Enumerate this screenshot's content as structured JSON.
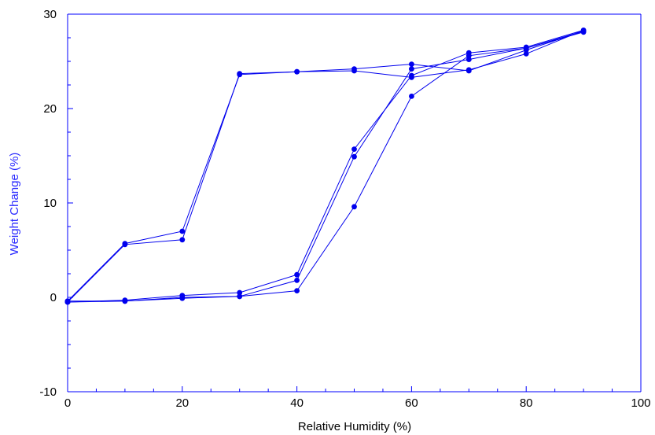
{
  "chart_data": {
    "type": "scatter",
    "title": "",
    "xlabel": "Relative Humidity (%)",
    "ylabel": "Weight Change (%)",
    "xlim": [
      0,
      100
    ],
    "ylim": [
      -10,
      30
    ],
    "x_ticks": [
      0,
      20,
      40,
      60,
      80,
      100
    ],
    "y_ticks": [
      -10,
      0,
      10,
      20,
      30
    ],
    "x_tick_labels": [
      "0",
      "20",
      "40",
      "60",
      "80",
      "100"
    ],
    "y_tick_labels": [
      "-10",
      "0",
      "10",
      "20",
      "30"
    ],
    "grid": false,
    "legend": "none",
    "line_mode": "lines+markers",
    "series": [
      {
        "points": [
          [
            0,
            -0.5
          ],
          [
            10,
            -0.3
          ],
          [
            20,
            0.2
          ],
          [
            30,
            0.5
          ],
          [
            40,
            2.4
          ],
          [
            50,
            15.7
          ],
          [
            60,
            23.5
          ],
          [
            70,
            25.9
          ],
          [
            80,
            26.5
          ],
          [
            90,
            28.3
          ],
          [
            80,
            25.8
          ],
          [
            70,
            24.1
          ],
          [
            60,
            23.3
          ],
          [
            50,
            24.0
          ],
          [
            40,
            23.9
          ],
          [
            30,
            23.6
          ],
          [
            20,
            7.0
          ],
          [
            10,
            5.7
          ],
          [
            0,
            -0.4
          ]
        ]
      },
      {
        "points": [
          [
            0,
            -0.4
          ],
          [
            10,
            -0.4
          ],
          [
            20,
            -0.1
          ],
          [
            30,
            0.1
          ],
          [
            40,
            1.8
          ],
          [
            50,
            14.9
          ],
          [
            60,
            24.2
          ],
          [
            70,
            25.2
          ],
          [
            80,
            26.4
          ],
          [
            90,
            28.2
          ],
          [
            80,
            26.2
          ],
          [
            70,
            24.0
          ],
          [
            60,
            24.7
          ],
          [
            50,
            24.2
          ],
          [
            40,
            23.9
          ],
          [
            30,
            23.7
          ],
          [
            20,
            6.1
          ],
          [
            10,
            5.6
          ],
          [
            0,
            -0.5
          ]
        ]
      },
      {
        "points": [
          [
            0,
            -0.5
          ],
          [
            10,
            -0.4
          ],
          [
            20,
            0.0
          ],
          [
            30,
            0.1
          ],
          [
            40,
            0.7
          ],
          [
            50,
            9.6
          ],
          [
            60,
            21.3
          ],
          [
            70,
            25.6
          ],
          [
            80,
            26.4
          ],
          [
            90,
            28.1
          ]
        ]
      }
    ]
  },
  "colors": {
    "axis": "#0000ff",
    "series": "#0000ee",
    "tick_text": "#000000",
    "ylabel": "#2a2aff",
    "xlabel": "#000000"
  }
}
